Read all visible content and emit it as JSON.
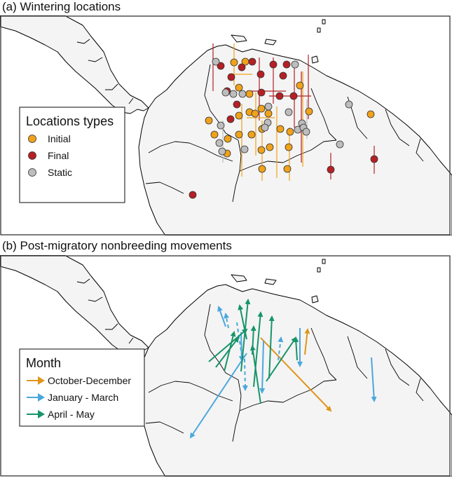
{
  "panel_a": {
    "title": "(a) Wintering locations",
    "legend": {
      "title": "Locations types",
      "items": [
        {
          "label": "Initial",
          "color": "#f0a21a"
        },
        {
          "label": "Final",
          "color": "#b52025"
        },
        {
          "label": "Static",
          "color": "#bdbdbd"
        }
      ]
    }
  },
  "panel_b": {
    "title": "(b) Post-migratory nonbreeding movements",
    "legend": {
      "title": "Month",
      "items": [
        {
          "label": "October-December",
          "color": "#e0961c"
        },
        {
          "label": "January - March",
          "color": "#4aa8dc"
        },
        {
          "label": "April - May",
          "color": "#17946a"
        }
      ]
    }
  }
}
